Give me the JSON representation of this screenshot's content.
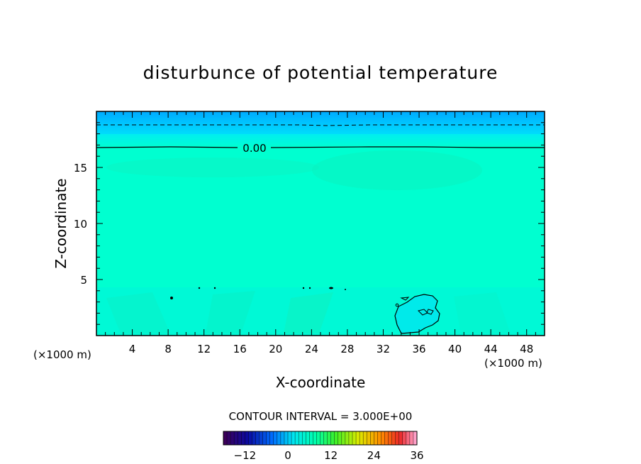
{
  "chart_data": {
    "type": "heatmap",
    "title": "disturbunce of potential temperature",
    "xlabel": "X-coordinate",
    "ylabel": "Z-coordinate",
    "x_unit_left": "(×1000 m)",
    "x_unit_right": "(×1000 m)",
    "xlim": [
      0,
      50
    ],
    "ylim": [
      0,
      20
    ],
    "x_ticks": [
      "4",
      "8",
      "12",
      "16",
      "20",
      "24",
      "28",
      "32",
      "36",
      "40",
      "44",
      "48"
    ],
    "y_ticks": [
      "5",
      "10",
      "15"
    ],
    "contour_interval_text": "CONTOUR INTERVAL = 3.000E+00",
    "contour_label": "0.00",
    "zero_contour_height": 16.7,
    "dashed_contour_height": 18.7,
    "colorbar": {
      "range": [
        -18,
        36
      ],
      "ticks": [
        "-12",
        "0",
        "12",
        "24",
        "36"
      ],
      "tick_values": [
        -12,
        0,
        12,
        24,
        36
      ]
    },
    "colors": {
      "background_field": "#00ffd0",
      "upper_band_top": "#00a8ff",
      "upper_band_mid": "#00c8ff",
      "upper_band_low": "#00e8f8",
      "perturbation_cell": "#00ecec",
      "contour": "#000000"
    }
  }
}
